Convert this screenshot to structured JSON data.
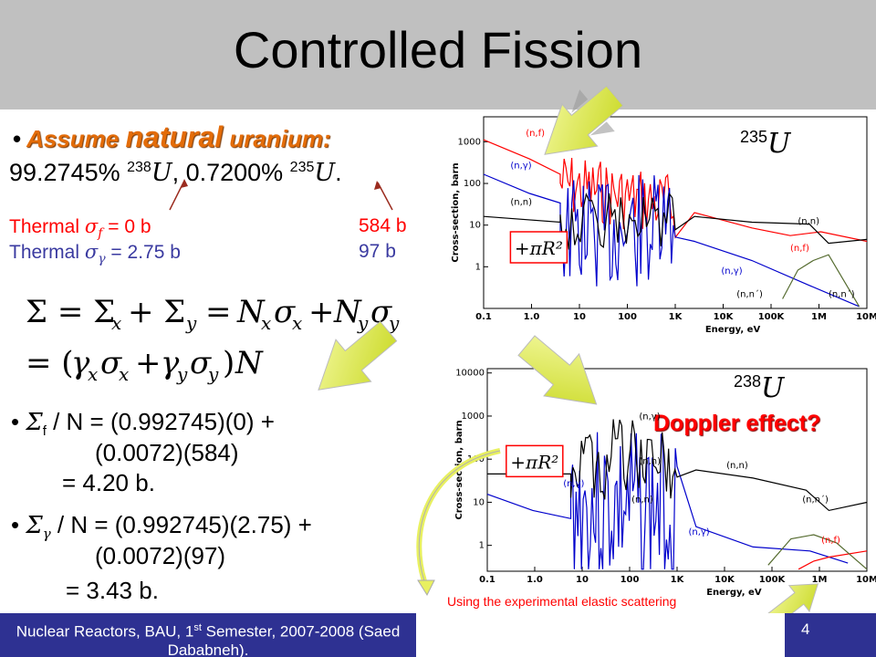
{
  "title": "Controlled Fission",
  "assume": {
    "pre": "Assume ",
    "big": "natural",
    "post": " uranium:"
  },
  "abundance": {
    "a1": "99.2745% ",
    "s1": "238",
    "U": "U",
    "a2": ", 0.7200% ",
    "s2": "235",
    "a3": "."
  },
  "thermal_f": {
    "label": "Thermal ",
    "sym": "σ",
    "sub": "f",
    "eq": " = 0 b",
    "right": "584 b"
  },
  "thermal_g": {
    "label": "Thermal ",
    "sym": "σ",
    "sub": "γ",
    "eq": " = 2.75 b",
    "right": "97 b"
  },
  "calc_f": {
    "sigma": "Σ",
    "sub": "f",
    "l1": " / N =  (0.992745)(0) +",
    "l2": "(0.0072)(584)",
    "l3": "= 4.20 b."
  },
  "calc_g": {
    "sigma": "Σ",
    "sub": "γ",
    "l1": " / N = (0.992745)(2.75) +",
    "l2": "(0.0072)(97)",
    "l3": "= 3.43 b."
  },
  "doppler": "Doppler effect?",
  "note": "Using the experimental elastic scattering data the radius of the nucleus can be estimated.",
  "footer": {
    "text": "Nuclear Reactors, BAU, 1st Semester, 2007-2008 (Saed Dababneh).",
    "page": "4"
  },
  "labels": {
    "U235_mass": "235",
    "U238_mass": "238",
    "U": "U"
  },
  "chart_common": {
    "xlabel": "Energy, eV",
    "ylabel": "Cross-section, barn",
    "xticks": [
      "0.1",
      "1.0",
      "10",
      "100",
      "1K",
      "10K",
      "100K",
      "1M",
      "10M"
    ]
  },
  "chart_data": [
    {
      "type": "line",
      "isotope": "235U",
      "yscale": "log",
      "xscale": "log",
      "yticks": [
        "1",
        "10",
        "100",
        "1000"
      ],
      "series_labels": [
        "(n,f)",
        "(n,γ)",
        "(n,n)",
        "(n,n)",
        "(n,f)",
        "(n,γ)",
        "(n,n´)",
        "(n,n´)"
      ],
      "annotation": "+πR²"
    },
    {
      "type": "line",
      "isotope": "238U",
      "yscale": "log",
      "xscale": "log",
      "yticks": [
        "1",
        "10",
        "100",
        "1000",
        "10000"
      ],
      "series_labels": [
        "(n,γ)",
        "(n,n)",
        "(n,n)",
        "(n,γ)",
        "(n,n)",
        "(n,γ)",
        "(n,n)",
        "(n,n´)",
        "(n,f)"
      ],
      "annotation": "+πR²"
    }
  ],
  "colors": {
    "title_bg": "#c0c0c0",
    "footer_bg": "#2e3192",
    "accent": "#e36c09",
    "red": "#ff0000",
    "blue": "#3a3aa0",
    "arrow": "#e8f060"
  }
}
